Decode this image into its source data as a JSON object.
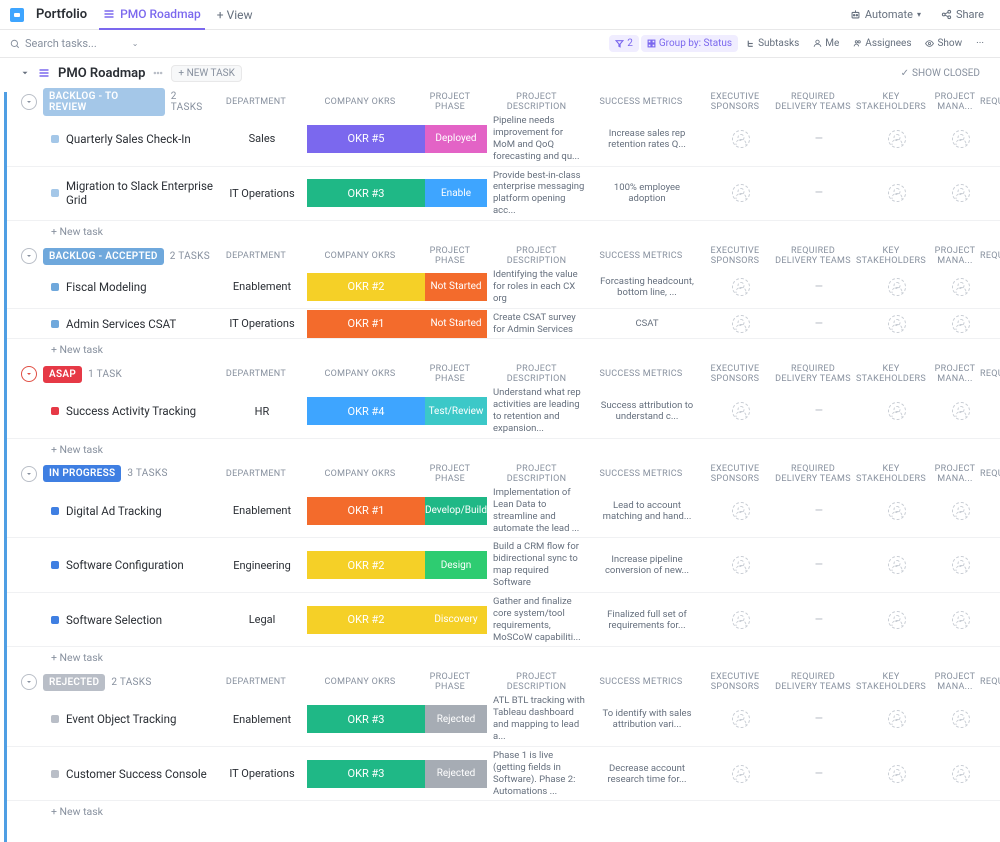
{
  "topbar": {
    "portfolio": "Portfolio",
    "active_tab": "PMO Roadmap",
    "add_view": "View",
    "automate": "Automate",
    "share": "Share"
  },
  "filterbar": {
    "search_placeholder": "Search tasks...",
    "filter_count": "2",
    "group_by": "Group by: Status",
    "subtasks": "Subtasks",
    "me": "Me",
    "assignees": "Assignees",
    "show": "Show"
  },
  "board": {
    "title": "PMO Roadmap",
    "new_task": "+ NEW TASK",
    "show_closed": "SHOW CLOSED"
  },
  "columns": {
    "department": "DEPARTMENT",
    "okrs": "COMPANY OKRS",
    "phase": "PROJECT PHASE",
    "description": "PROJECT DESCRIPTION",
    "metrics": "SUCCESS METRICS",
    "sponsors": "EXECUTIVE SPONSORS",
    "delivery": "REQUIRED DELIVERY TEAMS",
    "stakeholders": "KEY STAKEHOLDERS",
    "manager": "PROJECT MANA...",
    "end": "REQU"
  },
  "new_task_row": "+ New task",
  "groups": [
    {
      "status": "BACKLOG - TO REVIEW",
      "status_bg": "#a4c7e8",
      "count": "2 TASKS",
      "circle_red": false,
      "tasks": [
        {
          "name": "Quarterly Sales Check-In",
          "sq": "#a4c7e8",
          "dept": "Sales",
          "okr": "OKR #5",
          "okr_bg": "#7b68ee",
          "phase": "Deployed",
          "phase_bg": "#e363c6",
          "desc": "Pipeline needs improvement for MoM and QoQ forecasting and qu...",
          "metrics": "Increase sales rep retention rates Q..."
        },
        {
          "name": "Migration to Slack Enterprise Grid",
          "sq": "#a4c7e8",
          "dept": "IT Operations",
          "okr": "OKR #3",
          "okr_bg": "#1fb886",
          "phase": "Enable",
          "phase_bg": "#3ea5ff",
          "desc": "Provide best-in-class enterprise messaging platform opening acc...",
          "metrics": "100% employee adoption"
        }
      ]
    },
    {
      "status": "BACKLOG - ACCEPTED",
      "status_bg": "#6fa8dc",
      "count": "2 TASKS",
      "circle_red": false,
      "tasks": [
        {
          "name": "Fiscal Modeling",
          "sq": "#6fa8dc",
          "dept": "Enablement",
          "okr": "OKR #2",
          "okr_bg": "#f5d027",
          "phase": "Not Started",
          "phase_bg": "#f36b2c",
          "desc": "Identifying the value for roles in each CX org",
          "metrics": "Forcasting headcount, bottom line, ..."
        },
        {
          "name": "Admin Services CSAT",
          "sq": "#6fa8dc",
          "dept": "IT Operations",
          "okr": "OKR #1",
          "okr_bg": "#f36b2c",
          "phase": "Not Started",
          "phase_bg": "#f36b2c",
          "desc": "Create CSAT survey for Admin Services",
          "metrics": "CSAT"
        }
      ]
    },
    {
      "status": "ASAP",
      "status_bg": "#e63946",
      "count": "1 TASK",
      "circle_red": true,
      "tasks": [
        {
          "name": "Success Activity Tracking",
          "sq": "#e63946",
          "dept": "HR",
          "okr": "OKR #4",
          "okr_bg": "#3ea5ff",
          "phase": "Test/Review",
          "phase_bg": "#3cc8c8",
          "desc": "Understand what rep activities are leading to retention and expansion...",
          "metrics": "Success attribution to understand c..."
        }
      ]
    },
    {
      "status": "IN PROGRESS",
      "status_bg": "#3f7fe2",
      "count": "3 TASKS",
      "circle_red": false,
      "tasks": [
        {
          "name": "Digital Ad Tracking",
          "sq": "#3f7fe2",
          "dept": "Enablement",
          "okr": "OKR #1",
          "okr_bg": "#f36b2c",
          "phase": "Develop/Build",
          "phase_bg": "#1fb886",
          "desc": "Implementation of Lean Data to streamline and automate the lead ...",
          "metrics": "Lead to account matching and hand..."
        },
        {
          "name": "Software Configuration",
          "sq": "#3f7fe2",
          "dept": "Engineering",
          "okr": "OKR #2",
          "okr_bg": "#f5d027",
          "phase": "Design",
          "phase_bg": "#2ecc71",
          "desc": "Build a CRM flow for bidirectional sync to map required Software",
          "metrics": "Increase pipeline conversion of new..."
        },
        {
          "name": "Software Selection",
          "sq": "#3f7fe2",
          "dept": "Legal",
          "okr": "OKR #2",
          "okr_bg": "#f5d027",
          "phase": "Discovery",
          "phase_bg": "#f5d027",
          "desc": "Gather and finalize core system/tool requirements, MoSCoW capabiliti...",
          "metrics": "Finalized full set of requirements for..."
        }
      ]
    },
    {
      "status": "REJECTED",
      "status_bg": "#b9bec7",
      "count": "2 TASKS",
      "circle_red": false,
      "tasks": [
        {
          "name": "Event Object Tracking",
          "sq": "#b9bec7",
          "dept": "Enablement",
          "okr": "OKR #3",
          "okr_bg": "#1fb886",
          "phase": "Rejected",
          "phase_bg": "#a6acb4",
          "desc": "ATL BTL tracking with Tableau dashboard and mapping to lead a...",
          "metrics": "To identify with sales attribution vari..."
        },
        {
          "name": "Customer Success Console",
          "sq": "#b9bec7",
          "dept": "IT Operations",
          "okr": "OKR #3",
          "okr_bg": "#1fb886",
          "phase": "Rejected",
          "phase_bg": "#a6acb4",
          "desc": "Phase 1 is live (getting fields in Software).  Phase 2: Automations ...",
          "metrics": "Decrease account research time for..."
        }
      ]
    }
  ]
}
